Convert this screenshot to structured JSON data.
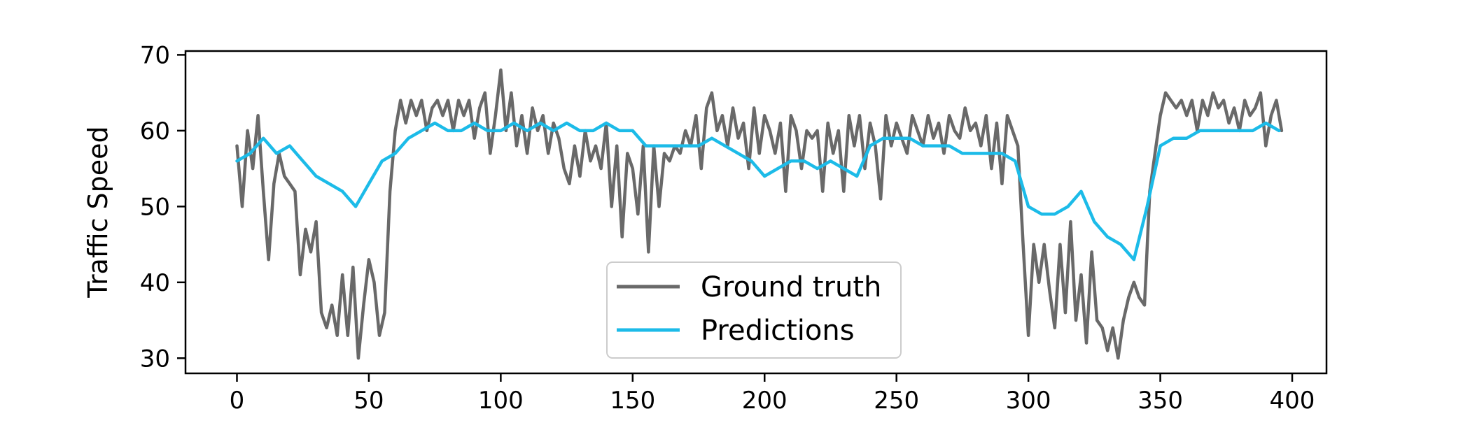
{
  "chart_data": {
    "type": "line",
    "title": "",
    "xlabel": "",
    "ylabel": "Traffic Speed",
    "xlim": [
      -19.5,
      413
    ],
    "ylim": [
      28,
      70.5
    ],
    "xticks": [
      0,
      50,
      100,
      150,
      200,
      250,
      300,
      350,
      400
    ],
    "yticks": [
      30,
      40,
      50,
      60,
      70
    ],
    "grid": false,
    "legend_position": "lower center",
    "series": [
      {
        "name": "Ground truth",
        "color": "#696969",
        "x": [
          0,
          2,
          4,
          6,
          8,
          10,
          12,
          14,
          16,
          18,
          20,
          22,
          24,
          26,
          28,
          30,
          32,
          34,
          36,
          38,
          40,
          42,
          44,
          46,
          48,
          50,
          52,
          54,
          56,
          58,
          60,
          62,
          64,
          66,
          68,
          70,
          72,
          74,
          76,
          78,
          80,
          82,
          84,
          86,
          88,
          90,
          92,
          94,
          96,
          98,
          100,
          102,
          104,
          106,
          108,
          110,
          112,
          114,
          116,
          118,
          120,
          122,
          124,
          126,
          128,
          130,
          132,
          134,
          136,
          138,
          140,
          142,
          144,
          146,
          148,
          150,
          152,
          154,
          156,
          158,
          160,
          162,
          164,
          166,
          168,
          170,
          172,
          174,
          176,
          178,
          180,
          182,
          184,
          186,
          188,
          190,
          192,
          194,
          196,
          198,
          200,
          202,
          204,
          206,
          208,
          210,
          212,
          214,
          216,
          218,
          220,
          222,
          224,
          226,
          228,
          230,
          232,
          234,
          236,
          238,
          240,
          242,
          244,
          246,
          248,
          250,
          252,
          254,
          256,
          258,
          260,
          262,
          264,
          266,
          268,
          270,
          272,
          274,
          276,
          278,
          280,
          282,
          284,
          286,
          288,
          290,
          292,
          294,
          296,
          298,
          300,
          302,
          304,
          306,
          308,
          310,
          312,
          314,
          316,
          318,
          320,
          322,
          324,
          326,
          328,
          330,
          332,
          334,
          336,
          338,
          340,
          342,
          344,
          346,
          348,
          350,
          352,
          354,
          356,
          358,
          360,
          362,
          364,
          366,
          368,
          370,
          372,
          374,
          376,
          378,
          380,
          382,
          384,
          386,
          388,
          390,
          392,
          394,
          396
        ],
        "values": [
          58,
          50,
          60,
          55,
          62,
          52,
          43,
          53,
          57,
          54,
          53,
          52,
          41,
          47,
          44,
          48,
          36,
          34,
          37,
          33,
          41,
          33,
          42,
          30,
          37,
          43,
          40,
          33,
          36,
          52,
          60,
          64,
          61,
          64,
          62,
          64,
          60,
          63,
          64,
          62,
          64,
          60,
          64,
          62,
          64,
          59,
          63,
          65,
          57,
          62,
          68,
          60,
          65,
          58,
          62,
          57,
          63,
          60,
          62,
          57,
          61,
          59,
          55,
          53,
          58,
          54,
          60,
          56,
          58,
          55,
          61,
          50,
          58,
          46,
          57,
          55,
          49,
          58,
          44,
          58,
          50,
          57,
          56,
          58,
          57,
          60,
          58,
          62,
          55,
          63,
          65,
          60,
          62,
          58,
          63,
          59,
          61,
          55,
          63,
          57,
          62,
          60,
          57,
          61,
          52,
          62,
          60,
          55,
          60,
          59,
          60,
          52,
          61,
          57,
          60,
          52,
          62,
          58,
          62,
          55,
          61,
          58,
          51,
          62,
          58,
          61,
          59,
          57,
          62,
          60,
          58,
          62,
          59,
          61,
          57,
          62,
          60,
          59,
          63,
          60,
          61,
          58,
          62,
          55,
          61,
          53,
          62,
          60,
          58,
          45,
          33,
          45,
          40,
          45,
          39,
          34,
          45,
          36,
          48,
          35,
          41,
          32,
          44,
          35,
          34,
          31,
          34,
          30,
          35,
          38,
          40,
          38,
          37,
          52,
          57,
          62,
          65,
          64,
          63,
          64,
          62,
          64,
          60,
          64,
          62,
          65,
          63,
          64,
          61,
          63,
          60,
          64,
          62,
          63,
          65,
          58,
          62,
          64,
          60
        ]
      },
      {
        "name": "Predictions",
        "color": "#1cbbe8",
        "x": [
          0,
          5,
          10,
          15,
          20,
          25,
          30,
          35,
          40,
          45,
          50,
          55,
          60,
          65,
          70,
          75,
          80,
          85,
          90,
          95,
          100,
          105,
          110,
          115,
          120,
          125,
          130,
          135,
          140,
          145,
          150,
          155,
          160,
          165,
          170,
          175,
          180,
          185,
          190,
          195,
          200,
          205,
          210,
          215,
          220,
          225,
          230,
          235,
          240,
          245,
          250,
          255,
          260,
          265,
          270,
          275,
          280,
          285,
          290,
          295,
          300,
          305,
          310,
          315,
          320,
          325,
          330,
          335,
          340,
          345,
          350,
          355,
          360,
          365,
          370,
          375,
          380,
          385,
          390,
          395
        ],
        "values": [
          56,
          57,
          59,
          57,
          58,
          56,
          54,
          53,
          52,
          50,
          53,
          56,
          57,
          59,
          60,
          61,
          60,
          60,
          61,
          60,
          60,
          61,
          60,
          61,
          60,
          61,
          60,
          60,
          61,
          60,
          60,
          58,
          58,
          58,
          58,
          58,
          59,
          58,
          57,
          56,
          54,
          55,
          56,
          56,
          55,
          56,
          55,
          54,
          58,
          59,
          59,
          59,
          58,
          58,
          58,
          57,
          57,
          57,
          57,
          56,
          50,
          49,
          49,
          50,
          52,
          48,
          46,
          45,
          43,
          50,
          58,
          59,
          59,
          60,
          60,
          60,
          60,
          60,
          61,
          60
        ]
      }
    ]
  }
}
